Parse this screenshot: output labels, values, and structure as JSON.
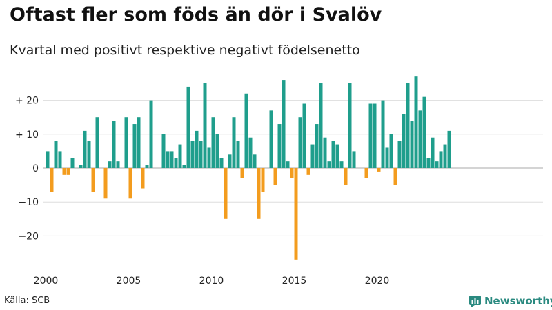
{
  "header": {
    "title": "Oftast fler som föds än dör i Svalöv",
    "subtitle": "Kvartal med positivt respektive negativt födelsenetto"
  },
  "footer": {
    "source": "Källa: SCB",
    "brand": "Newsworthy"
  },
  "colors": {
    "positive": "#1f9e8c",
    "negative": "#f39c1e",
    "grid": "#dddddd",
    "zero": "#aaaaaa",
    "brand": "#2a8a80"
  },
  "icons": {
    "brand": "newsworthy-logo-icon"
  },
  "chart_data": {
    "type": "bar",
    "title": "Oftast fler som föds än dör i Svalöv",
    "subtitle": "Kvartal med positivt respektive negativt födelsenetto",
    "xlabel": "",
    "ylabel": "",
    "ylim": [
      -28,
      28
    ],
    "yticks": [
      20,
      10,
      0,
      -10,
      -20
    ],
    "ytick_labels": [
      "+ 20",
      "+ 10",
      "0",
      "−10",
      "−20"
    ],
    "xticks": [
      {
        "year": 2000,
        "label": "2000"
      },
      {
        "year": 2005,
        "label": "2005"
      },
      {
        "year": 2010,
        "label": "2010"
      },
      {
        "year": 2015,
        "label": "2015"
      },
      {
        "year": 2020,
        "label": "2020"
      }
    ],
    "start_year": 2000,
    "grid": true,
    "legend": "none",
    "period": "quarter",
    "values": [
      5,
      -7,
      8,
      5,
      -2,
      -2,
      3,
      0,
      1,
      11,
      8,
      -7,
      15,
      0,
      -9,
      2,
      14,
      2,
      0,
      15,
      -9,
      13,
      15,
      -6,
      1,
      20,
      0,
      0,
      10,
      5,
      5,
      3,
      7,
      1,
      24,
      8,
      11,
      8,
      25,
      6,
      15,
      10,
      3,
      -15,
      4,
      15,
      8,
      -3,
      22,
      9,
      4,
      -15,
      -7,
      0,
      17,
      -5,
      13,
      26,
      2,
      -3,
      -27,
      15,
      19,
      -2,
      7,
      13,
      25,
      9,
      2,
      8,
      7,
      2,
      -5,
      25,
      5,
      0,
      0,
      -3,
      19,
      19,
      -1,
      20,
      6,
      10,
      -5,
      8,
      16,
      25,
      14,
      27,
      17,
      21,
      3,
      9,
      2,
      5,
      7,
      11
    ]
  }
}
